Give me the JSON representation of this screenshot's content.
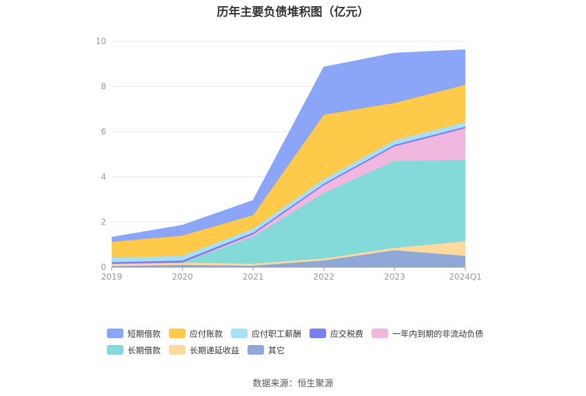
{
  "chart_data": {
    "type": "area",
    "title": "历年主要负债堆积图（亿元）",
    "categories": [
      "2019",
      "2020",
      "2021",
      "2022",
      "2023",
      "2024Q1"
    ],
    "ylim": [
      0,
      10
    ],
    "yticks": [
      0,
      2,
      4,
      6,
      8,
      10
    ],
    "grid": true,
    "stacked": true,
    "legend_position": "bottom",
    "series": [
      {
        "name": "其它",
        "color": "#8fa8d8",
        "values": [
          0.05,
          0.1,
          0.07,
          0.3,
          0.75,
          0.5
        ]
      },
      {
        "name": "长期递延收益",
        "color": "#ffd99e",
        "values": [
          0.1,
          0.1,
          0.08,
          0.08,
          0.1,
          0.65
        ]
      },
      {
        "name": "长期借款",
        "color": "#84dad8",
        "values": [
          0.0,
          0.0,
          1.2,
          2.9,
          3.85,
          3.6
        ]
      },
      {
        "name": "一年内到期的非流动负债",
        "color": "#f0b8de",
        "values": [
          0.0,
          0.0,
          0.1,
          0.35,
          0.65,
          1.4
        ]
      },
      {
        "name": "应交税费",
        "color": "#7b7fee",
        "values": [
          0.07,
          0.1,
          0.08,
          0.07,
          0.07,
          0.07
        ]
      },
      {
        "name": "应付职工薪酬",
        "color": "#a8dff5",
        "values": [
          0.2,
          0.2,
          0.17,
          0.2,
          0.2,
          0.2
        ]
      },
      {
        "name": "应付账款",
        "color": "#ffc94a",
        "values": [
          0.7,
          0.9,
          0.6,
          2.85,
          1.65,
          1.65
        ]
      },
      {
        "name": "短期借款",
        "color": "#8ba5f8",
        "values": [
          0.2,
          0.45,
          0.65,
          2.1,
          2.2,
          1.55
        ]
      }
    ]
  },
  "legend": {
    "row1": [
      "短期借款",
      "应付账款",
      "应付职工薪酬",
      "应交税费",
      "一年内到期的非流动负债"
    ],
    "row2": [
      "长期借款",
      "长期递延收益",
      "其它"
    ]
  },
  "source": "数据来源：恒生聚源"
}
